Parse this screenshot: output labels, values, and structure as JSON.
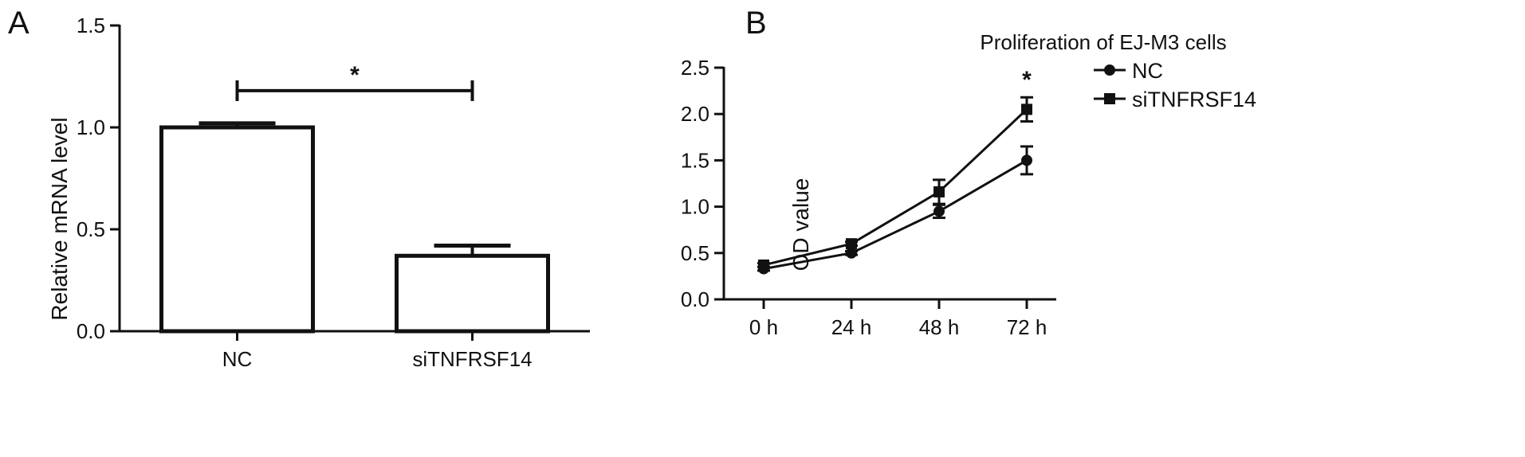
{
  "panels": [
    {
      "letter": "A"
    },
    {
      "letter": "B"
    }
  ],
  "chart_data": [
    {
      "type": "bar",
      "title": "",
      "xlabel": "",
      "ylabel": "Relative mRNA level",
      "categories": [
        "NC",
        "siTNFRSF14"
      ],
      "values": [
        1.0,
        0.37
      ],
      "error": [
        0.02,
        0.05
      ],
      "ylim": [
        0,
        1.5
      ],
      "yticks": [
        "0.0",
        "0.5",
        "1.0",
        "1.5"
      ],
      "significance": {
        "from": "NC",
        "to": "siTNFRSF14",
        "label": "*",
        "y": 1.18
      },
      "grid": false,
      "bar_color": "#ffffff",
      "edge_color": "#111111"
    },
    {
      "type": "line",
      "title": "Proliferation of EJ-M3 cells",
      "xlabel": "",
      "ylabel": "OD value",
      "categories": [
        "0 h",
        "24 h",
        "48 h",
        "72 h"
      ],
      "series": [
        {
          "name": "NC",
          "marker": "circle",
          "values": [
            0.33,
            0.5,
            0.95,
            1.5
          ],
          "error": [
            0.02,
            0.02,
            0.07,
            0.15
          ]
        },
        {
          "name": "siTNFRSF14",
          "marker": "square",
          "values": [
            0.37,
            0.6,
            1.16,
            2.05
          ],
          "error": [
            0.02,
            0.02,
            0.13,
            0.13
          ]
        }
      ],
      "ylim": [
        0,
        2.5
      ],
      "yticks": [
        "0.0",
        "0.5",
        "1.0",
        "1.5",
        "2.0",
        "2.5"
      ],
      "annotations": [
        {
          "category": "72 h",
          "label": "*"
        }
      ],
      "legend": "right",
      "grid": false
    }
  ]
}
